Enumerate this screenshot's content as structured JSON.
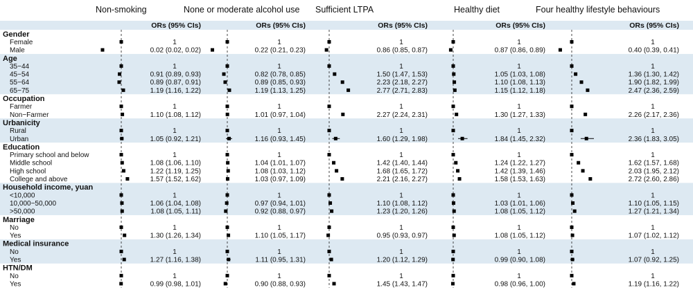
{
  "chart_data": {
    "type": "forest",
    "panel_titles": [
      "Non-smoking",
      "None or moderate alcohol use",
      "Sufficient LTPA",
      "Healthy diet",
      "Four healthy lifestyle behaviours"
    ],
    "column_header": "ORs (95% CIs)",
    "reference_value": 1,
    "colors": {
      "band": "#dde9f2",
      "marker": "#000000",
      "axis": "#333333"
    },
    "groups": [
      {
        "name": "Gender",
        "rows": [
          {
            "label": "Female",
            "values": [
              {
                "text": "1",
                "or": 1
              },
              {
                "text": "1",
                "or": 1
              },
              {
                "text": "1",
                "or": 1
              },
              {
                "text": "1",
                "or": 1
              },
              {
                "text": "1",
                "or": 1
              }
            ]
          },
          {
            "label": "Male",
            "values": [
              {
                "text": "0.02 (0.02, 0.02)",
                "or": 0.02,
                "lo": 0.02,
                "hi": 0.02
              },
              {
                "text": "0.22 (0.21, 0.23)",
                "or": 0.22,
                "lo": 0.21,
                "hi": 0.23
              },
              {
                "text": "0.86 (0.85, 0.87)",
                "or": 0.86,
                "lo": 0.85,
                "hi": 0.87
              },
              {
                "text": "0.87 (0.86, 0.89)",
                "or": 0.87,
                "lo": 0.86,
                "hi": 0.89
              },
              {
                "text": "0.40 (0.39, 0.41)",
                "or": 0.4,
                "lo": 0.39,
                "hi": 0.41
              }
            ]
          }
        ]
      },
      {
        "name": "Age",
        "rows": [
          {
            "label": "35−44",
            "values": [
              {
                "text": "1",
                "or": 1
              },
              {
                "text": "1",
                "or": 1
              },
              {
                "text": "1",
                "or": 1
              },
              {
                "text": "1",
                "or": 1
              },
              {
                "text": "1",
                "or": 1
              }
            ]
          },
          {
            "label": "45−54",
            "values": [
              {
                "text": "0.91 (0.89, 0.93)",
                "or": 0.91,
                "lo": 0.89,
                "hi": 0.93
              },
              {
                "text": "0.82 (0.78, 0.85)",
                "or": 0.82,
                "lo": 0.78,
                "hi": 0.85
              },
              {
                "text": "1.50 (1.47, 1.53)",
                "or": 1.5,
                "lo": 1.47,
                "hi": 1.53
              },
              {
                "text": "1.05 (1.03, 1.08)",
                "or": 1.05,
                "lo": 1.03,
                "hi": 1.08
              },
              {
                "text": "1.36 (1.30, 1.42)",
                "or": 1.36,
                "lo": 1.3,
                "hi": 1.42
              }
            ]
          },
          {
            "label": "55−64",
            "values": [
              {
                "text": "0.89 (0.87, 0.91)",
                "or": 0.89,
                "lo": 0.87,
                "hi": 0.91
              },
              {
                "text": "0.89 (0.85, 0.93)",
                "or": 0.89,
                "lo": 0.85,
                "hi": 0.93
              },
              {
                "text": "2.23 (2.18, 2.27)",
                "or": 2.23,
                "lo": 2.18,
                "hi": 2.27
              },
              {
                "text": "1.10 (1.08, 1.13)",
                "or": 1.1,
                "lo": 1.08,
                "hi": 1.13
              },
              {
                "text": "1.90 (1.82, 1.99)",
                "or": 1.9,
                "lo": 1.82,
                "hi": 1.99
              }
            ]
          },
          {
            "label": "65−75",
            "values": [
              {
                "text": "1.19 (1.16, 1.22)",
                "or": 1.19,
                "lo": 1.16,
                "hi": 1.22
              },
              {
                "text": "1.19 (1.13, 1.25)",
                "or": 1.19,
                "lo": 1.13,
                "hi": 1.25
              },
              {
                "text": "2.77 (2.71, 2.83)",
                "or": 2.77,
                "lo": 2.71,
                "hi": 2.83
              },
              {
                "text": "1.15 (1.12, 1.18)",
                "or": 1.15,
                "lo": 1.12,
                "hi": 1.18
              },
              {
                "text": "2.47 (2.36, 2.59)",
                "or": 2.47,
                "lo": 2.36,
                "hi": 2.59
              }
            ]
          }
        ]
      },
      {
        "name": "Occupation",
        "rows": [
          {
            "label": "Farmer",
            "values": [
              {
                "text": "1",
                "or": 1
              },
              {
                "text": "1",
                "or": 1
              },
              {
                "text": "1",
                "or": 1
              },
              {
                "text": "1",
                "or": 1
              },
              {
                "text": "1",
                "or": 1
              }
            ]
          },
          {
            "label": "Non−Farmer",
            "values": [
              {
                "text": "1.10 (1.08, 1.12)",
                "or": 1.1,
                "lo": 1.08,
                "hi": 1.12
              },
              {
                "text": "1.01 (0.97, 1.04)",
                "or": 1.01,
                "lo": 0.97,
                "hi": 1.04
              },
              {
                "text": "2.27 (2.24, 2.31)",
                "or": 2.27,
                "lo": 2.24,
                "hi": 2.31
              },
              {
                "text": "1.30 (1.27, 1.33)",
                "or": 1.3,
                "lo": 1.27,
                "hi": 1.33
              },
              {
                "text": "2.26 (2.17, 2.36)",
                "or": 2.26,
                "lo": 2.17,
                "hi": 2.36
              }
            ]
          }
        ]
      },
      {
        "name": "Urbanicity",
        "rows": [
          {
            "label": "Rural",
            "values": [
              {
                "text": "1",
                "or": 1
              },
              {
                "text": "1",
                "or": 1
              },
              {
                "text": "1",
                "or": 1
              },
              {
                "text": "1",
                "or": 1
              },
              {
                "text": "1",
                "or": 1
              }
            ]
          },
          {
            "label": "Urban",
            "values": [
              {
                "text": "1.05 (0.92, 1.21)",
                "or": 1.05,
                "lo": 0.92,
                "hi": 1.21
              },
              {
                "text": "1.16 (0.93, 1.45)",
                "or": 1.16,
                "lo": 0.93,
                "hi": 1.45
              },
              {
                "text": "1.60 (1.29, 1.98)",
                "or": 1.6,
                "lo": 1.29,
                "hi": 1.98
              },
              {
                "text": "1.84 (1.45, 2.32)",
                "or": 1.84,
                "lo": 1.45,
                "hi": 2.32
              },
              {
                "text": "2.36 (1.83, 3.05)",
                "or": 2.36,
                "lo": 1.83,
                "hi": 3.05
              }
            ]
          }
        ]
      },
      {
        "name": "Education",
        "rows": [
          {
            "label": "Primary school and below",
            "values": [
              {
                "text": "1",
                "or": 1
              },
              {
                "text": "1",
                "or": 1
              },
              {
                "text": "1",
                "or": 1
              },
              {
                "text": "1",
                "or": 1
              },
              {
                "text": "1",
                "or": 1
              }
            ]
          },
          {
            "label": "Middle school",
            "values": [
              {
                "text": "1.08 (1.06, 1.10)",
                "or": 1.08,
                "lo": 1.06,
                "hi": 1.1
              },
              {
                "text": "1.04 (1.01, 1.07)",
                "or": 1.04,
                "lo": 1.01,
                "hi": 1.07
              },
              {
                "text": "1.42 (1.40, 1.44)",
                "or": 1.42,
                "lo": 1.4,
                "hi": 1.44
              },
              {
                "text": "1.24 (1.22, 1.27)",
                "or": 1.24,
                "lo": 1.22,
                "hi": 1.27
              },
              {
                "text": "1.62 (1.57, 1.68)",
                "or": 1.62,
                "lo": 1.57,
                "hi": 1.68
              }
            ]
          },
          {
            "label": "High school",
            "values": [
              {
                "text": "1.22 (1.19, 1.25)",
                "or": 1.22,
                "lo": 1.19,
                "hi": 1.25
              },
              {
                "text": "1.08 (1.03, 1.12)",
                "or": 1.08,
                "lo": 1.03,
                "hi": 1.12
              },
              {
                "text": "1.68 (1.65, 1.72)",
                "or": 1.68,
                "lo": 1.65,
                "hi": 1.72
              },
              {
                "text": "1.42 (1.39, 1.46)",
                "or": 1.42,
                "lo": 1.39,
                "hi": 1.46
              },
              {
                "text": "2.03 (1.95, 2.12)",
                "or": 2.03,
                "lo": 1.95,
                "hi": 2.12
              }
            ]
          },
          {
            "label": "College and above",
            "values": [
              {
                "text": "1.57 (1.52, 1.62)",
                "or": 1.57,
                "lo": 1.52,
                "hi": 1.62
              },
              {
                "text": "1.03 (0.97, 1.09)",
                "or": 1.03,
                "lo": 0.97,
                "hi": 1.09
              },
              {
                "text": "2.21 (2.16, 2.27)",
                "or": 2.21,
                "lo": 2.16,
                "hi": 2.27
              },
              {
                "text": "1.58 (1.53, 1.63)",
                "or": 1.58,
                "lo": 1.53,
                "hi": 1.63
              },
              {
                "text": "2.72 (2.60, 2.86)",
                "or": 2.72,
                "lo": 2.6,
                "hi": 2.86
              }
            ]
          }
        ]
      },
      {
        "name": "Household income, yuan",
        "rows": [
          {
            "label": "<10,000",
            "values": [
              {
                "text": "1",
                "or": 1
              },
              {
                "text": "1",
                "or": 1
              },
              {
                "text": "1",
                "or": 1
              },
              {
                "text": "1",
                "or": 1
              },
              {
                "text": "1",
                "or": 1
              }
            ]
          },
          {
            "label": "10,000−50,000",
            "values": [
              {
                "text": "1.06 (1.04, 1.08)",
                "or": 1.06,
                "lo": 1.04,
                "hi": 1.08
              },
              {
                "text": "0.97 (0.94, 1.01)",
                "or": 0.97,
                "lo": 0.94,
                "hi": 1.01
              },
              {
                "text": "1.10 (1.08, 1.12)",
                "or": 1.1,
                "lo": 1.08,
                "hi": 1.12
              },
              {
                "text": "1.03 (1.01, 1.06)",
                "or": 1.03,
                "lo": 1.01,
                "hi": 1.06
              },
              {
                "text": "1.10 (1.05, 1.15)",
                "or": 1.1,
                "lo": 1.05,
                "hi": 1.15
              }
            ]
          },
          {
            "label": ">50,000",
            "values": [
              {
                "text": "1.08 (1.05, 1.11)",
                "or": 1.08,
                "lo": 1.05,
                "hi": 1.11
              },
              {
                "text": "0.92 (0.88, 0.97)",
                "or": 0.92,
                "lo": 0.88,
                "hi": 0.97
              },
              {
                "text": "1.23 (1.20, 1.26)",
                "or": 1.23,
                "lo": 1.2,
                "hi": 1.26
              },
              {
                "text": "1.08 (1.05, 1.12)",
                "or": 1.08,
                "lo": 1.05,
                "hi": 1.12
              },
              {
                "text": "1.27 (1.21, 1.34)",
                "or": 1.27,
                "lo": 1.21,
                "hi": 1.34
              }
            ]
          }
        ]
      },
      {
        "name": "Marriage",
        "rows": [
          {
            "label": "No",
            "values": [
              {
                "text": "1",
                "or": 1
              },
              {
                "text": "1",
                "or": 1
              },
              {
                "text": "1",
                "or": 1
              },
              {
                "text": "1",
                "or": 1
              },
              {
                "text": "1",
                "or": 1
              }
            ]
          },
          {
            "label": "Yes",
            "values": [
              {
                "text": "1.30 (1.26, 1.34)",
                "or": 1.3,
                "lo": 1.26,
                "hi": 1.34
              },
              {
                "text": "1.10 (1.05, 1.17)",
                "or": 1.1,
                "lo": 1.05,
                "hi": 1.17
              },
              {
                "text": "0.95 (0.93, 0.97)",
                "or": 0.95,
                "lo": 0.93,
                "hi": 0.97
              },
              {
                "text": "1.08 (1.05, 1.12)",
                "or": 1.08,
                "lo": 1.05,
                "hi": 1.12
              },
              {
                "text": "1.07 (1.02, 1.12)",
                "or": 1.07,
                "lo": 1.02,
                "hi": 1.12
              }
            ]
          }
        ]
      },
      {
        "name": "Medical insurance",
        "rows": [
          {
            "label": "No",
            "values": [
              {
                "text": "1",
                "or": 1
              },
              {
                "text": "1",
                "or": 1
              },
              {
                "text": "1",
                "or": 1
              },
              {
                "text": "1",
                "or": 1
              },
              {
                "text": "1",
                "or": 1
              }
            ]
          },
          {
            "label": "Yes",
            "values": [
              {
                "text": "1.27 (1.16, 1.38)",
                "or": 1.27,
                "lo": 1.16,
                "hi": 1.38
              },
              {
                "text": "1.11 (0.95, 1.31)",
                "or": 1.11,
                "lo": 0.95,
                "hi": 1.31
              },
              {
                "text": "1.20 (1.12, 1.29)",
                "or": 1.2,
                "lo": 1.12,
                "hi": 1.29
              },
              {
                "text": "0.99 (0.90, 1.08)",
                "or": 0.99,
                "lo": 0.9,
                "hi": 1.08
              },
              {
                "text": "1.07 (0.92, 1.25)",
                "or": 1.07,
                "lo": 0.92,
                "hi": 1.25
              }
            ]
          }
        ]
      },
      {
        "name": "HTN/DM",
        "rows": [
          {
            "label": "No",
            "values": [
              {
                "text": "1",
                "or": 1
              },
              {
                "text": "1",
                "or": 1
              },
              {
                "text": "1",
                "or": 1
              },
              {
                "text": "1",
                "or": 1
              },
              {
                "text": "1",
                "or": 1
              }
            ]
          },
          {
            "label": "Yes",
            "values": [
              {
                "text": "0.99 (0.98, 1.01)",
                "or": 0.99,
                "lo": 0.98,
                "hi": 1.01
              },
              {
                "text": "0.90 (0.88, 0.93)",
                "or": 0.9,
                "lo": 0.88,
                "hi": 0.93
              },
              {
                "text": "1.45 (1.43, 1.47)",
                "or": 1.45,
                "lo": 1.43,
                "hi": 1.47
              },
              {
                "text": "0.98 (0.96, 1.00)",
                "or": 0.98,
                "lo": 0.96,
                "hi": 1.0
              },
              {
                "text": "1.19 (1.16, 1.22)",
                "or": 1.19,
                "lo": 1.16,
                "hi": 1.22
              }
            ]
          }
        ]
      }
    ]
  }
}
